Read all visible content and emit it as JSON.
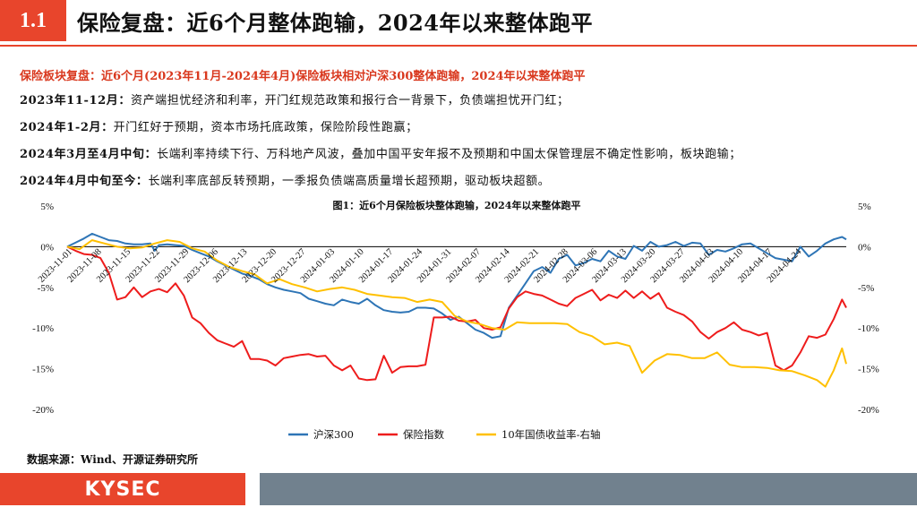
{
  "header": {
    "section": "1.1",
    "title": "保险复盘：近6个月整体跑输，2024年以来整体跑平"
  },
  "headline": "保险板块复盘：近6个月(2023年11月-2024年4月)保险板块相对沪深300整体跑输，2024年以来整体跑平",
  "paragraphs": [
    {
      "label": "2023年11-12月：",
      "text": "资产端担忧经济和利率，开门红规范政策和报行合一背景下，负债端担忧开门红；"
    },
    {
      "label": "2024年1-2月：",
      "text": "开门红好于预期，资本市场托底政策，保险阶段性跑赢；"
    },
    {
      "label": "2024年3月至4月中旬：",
      "text": "长端利率持续下行、万科地产风波，叠加中国平安年报不及预期和中国太保管理层不确定性影响，板块跑输；"
    },
    {
      "label": "2024年4月中旬至今：",
      "text": "长端利率底部反转预期，一季报负债端高质量增长超预期，驱动板块超额。"
    }
  ],
  "source": "数据来源：Wind、开源证券研究所",
  "footer": {
    "logo": "KYSEC"
  },
  "chart_data": {
    "type": "line",
    "title": "图1：近6个月保险板块整体跑输，2024年以来整体跑平",
    "left_axis": {
      "min": -20,
      "max": 5,
      "ticks": [
        "5%",
        "0%",
        "-5%",
        "-10%",
        "-15%",
        "-20%"
      ]
    },
    "right_axis": {
      "min": -20,
      "max": 5,
      "ticks": [
        "5%",
        "0%",
        "-5%",
        "-10%",
        "-15%",
        "-20%"
      ]
    },
    "x_tick_labels": [
      "2023-11-01",
      "2023-11-08",
      "2023-11-15",
      "2023-11-22",
      "2023-11-29",
      "2023-12-06",
      "2023-12-13",
      "2023-12-20",
      "2023-12-27",
      "2024-01-03",
      "2024-01-10",
      "2024-01-17",
      "2024-01-24",
      "2024-01-31",
      "2024-02-07",
      "2024-02-14",
      "2024-02-21",
      "2024-02-28",
      "2024-03-06",
      "2024-03-13",
      "2024-03-20",
      "2024-03-27",
      "2024-04-03",
      "2024-04-10",
      "2024-04-17",
      "2024-04-24"
    ],
    "x_range_days": [
      0,
      187
    ],
    "series": [
      {
        "name": "沪深300",
        "color": "#2e75b6",
        "points": [
          [
            0,
            0
          ],
          [
            2,
            0.5
          ],
          [
            4,
            1
          ],
          [
            6,
            1.6
          ],
          [
            8,
            1.2
          ],
          [
            10,
            0.8
          ],
          [
            12,
            0.7
          ],
          [
            14,
            0.4
          ],
          [
            16,
            0.3
          ],
          [
            18,
            0.3
          ],
          [
            20,
            0.4
          ],
          [
            21,
            -0.5
          ],
          [
            22,
            0.2
          ],
          [
            24,
            0.3
          ],
          [
            26,
            0.2
          ],
          [
            28,
            0.1
          ],
          [
            30,
            -0.4
          ],
          [
            32,
            -0.8
          ],
          [
            34,
            -1.2
          ],
          [
            36,
            -1.8
          ],
          [
            38,
            -2.3
          ],
          [
            40,
            -2.8
          ],
          [
            42,
            -3.3
          ],
          [
            44,
            -3.6
          ],
          [
            46,
            -4.0
          ],
          [
            48,
            -4.6
          ],
          [
            50,
            -5.0
          ],
          [
            52,
            -5.3
          ],
          [
            54,
            -5.5
          ],
          [
            56,
            -5.7
          ],
          [
            58,
            -6.4
          ],
          [
            60,
            -6.7
          ],
          [
            62,
            -7.0
          ],
          [
            64,
            -7.2
          ],
          [
            66,
            -6.5
          ],
          [
            68,
            -6.8
          ],
          [
            70,
            -7.0
          ],
          [
            72,
            -6.4
          ],
          [
            74,
            -7.2
          ],
          [
            76,
            -7.8
          ],
          [
            78,
            -8.0
          ],
          [
            80,
            -8.1
          ],
          [
            82,
            -8.0
          ],
          [
            84,
            -7.5
          ],
          [
            86,
            -7.5
          ],
          [
            88,
            -7.6
          ],
          [
            90,
            -8.2
          ],
          [
            92,
            -9.0
          ],
          [
            94,
            -8.6
          ],
          [
            96,
            -9.4
          ],
          [
            98,
            -10.2
          ],
          [
            100,
            -10.6
          ],
          [
            102,
            -11.2
          ],
          [
            104,
            -11.0
          ],
          [
            106,
            -7.5
          ],
          [
            108,
            -6.0
          ],
          [
            110,
            -4.5
          ],
          [
            112,
            -3.0
          ],
          [
            114,
            -2.5
          ],
          [
            116,
            -3.2
          ],
          [
            118,
            -1.5
          ],
          [
            120,
            -1.0
          ],
          [
            122,
            -2.3
          ],
          [
            124,
            -2.0
          ],
          [
            126,
            -1.5
          ],
          [
            128,
            -1.8
          ],
          [
            130,
            -0.5
          ],
          [
            132,
            -1.2
          ],
          [
            134,
            -1.5
          ],
          [
            136,
            0.1
          ],
          [
            138,
            -0.5
          ],
          [
            140,
            0.6
          ],
          [
            142,
            0.0
          ],
          [
            144,
            0.2
          ],
          [
            146,
            0.6
          ],
          [
            148,
            0.1
          ],
          [
            150,
            0.5
          ],
          [
            152,
            0.4
          ],
          [
            154,
            -1.0
          ],
          [
            156,
            -0.4
          ],
          [
            158,
            -0.6
          ],
          [
            160,
            -0.2
          ],
          [
            162,
            0.3
          ],
          [
            164,
            0.4
          ],
          [
            166,
            -0.2
          ],
          [
            168,
            -0.8
          ],
          [
            170,
            -1.4
          ],
          [
            172,
            -1.6
          ],
          [
            174,
            -1.8
          ],
          [
            176,
            0.0
          ],
          [
            178,
            -1.2
          ],
          [
            180,
            -0.5
          ],
          [
            182,
            0.4
          ],
          [
            184,
            0.9
          ],
          [
            186,
            1.2
          ],
          [
            187,
            0.9
          ]
        ]
      },
      {
        "name": "保险指数",
        "color": "#ee1c1c",
        "points": [
          [
            0,
            0
          ],
          [
            2,
            -0.5
          ],
          [
            4,
            -0.9
          ],
          [
            6,
            -1.0
          ],
          [
            8,
            -1.4
          ],
          [
            10,
            -3.2
          ],
          [
            12,
            -6.5
          ],
          [
            14,
            -6.2
          ],
          [
            16,
            -5.0
          ],
          [
            18,
            -6.2
          ],
          [
            20,
            -5.5
          ],
          [
            22,
            -5.2
          ],
          [
            24,
            -5.6
          ],
          [
            26,
            -4.5
          ],
          [
            28,
            -6.0
          ],
          [
            30,
            -8.7
          ],
          [
            32,
            -9.4
          ],
          [
            34,
            -10.6
          ],
          [
            36,
            -11.5
          ],
          [
            38,
            -11.9
          ],
          [
            40,
            -12.3
          ],
          [
            42,
            -11.6
          ],
          [
            44,
            -13.8
          ],
          [
            46,
            -13.8
          ],
          [
            48,
            -14.0
          ],
          [
            50,
            -14.6
          ],
          [
            52,
            -13.7
          ],
          [
            54,
            -13.5
          ],
          [
            56,
            -13.3
          ],
          [
            58,
            -13.2
          ],
          [
            60,
            -13.5
          ],
          [
            62,
            -13.4
          ],
          [
            64,
            -14.6
          ],
          [
            66,
            -15.2
          ],
          [
            68,
            -14.6
          ],
          [
            70,
            -16.2
          ],
          [
            72,
            -16.4
          ],
          [
            74,
            -16.3
          ],
          [
            76,
            -13.4
          ],
          [
            78,
            -15.5
          ],
          [
            80,
            -14.8
          ],
          [
            82,
            -14.7
          ],
          [
            84,
            -14.7
          ],
          [
            86,
            -14.5
          ],
          [
            88,
            -8.7
          ],
          [
            90,
            -8.7
          ],
          [
            92,
            -8.6
          ],
          [
            94,
            -9.1
          ],
          [
            96,
            -9.2
          ],
          [
            98,
            -9.0
          ],
          [
            100,
            -10.0
          ],
          [
            102,
            -10.2
          ],
          [
            104,
            -9.9
          ],
          [
            106,
            -7.6
          ],
          [
            108,
            -6.2
          ],
          [
            110,
            -5.5
          ],
          [
            112,
            -5.8
          ],
          [
            114,
            -6.0
          ],
          [
            116,
            -6.5
          ],
          [
            118,
            -7.0
          ],
          [
            120,
            -7.3
          ],
          [
            122,
            -6.3
          ],
          [
            124,
            -5.8
          ],
          [
            126,
            -5.3
          ],
          [
            128,
            -6.6
          ],
          [
            130,
            -5.9
          ],
          [
            132,
            -6.3
          ],
          [
            134,
            -5.4
          ],
          [
            136,
            -6.3
          ],
          [
            138,
            -5.5
          ],
          [
            140,
            -6.4
          ],
          [
            142,
            -5.7
          ],
          [
            144,
            -7.5
          ],
          [
            146,
            -8.0
          ],
          [
            148,
            -8.4
          ],
          [
            150,
            -9.2
          ],
          [
            152,
            -10.5
          ],
          [
            154,
            -11.3
          ],
          [
            156,
            -10.5
          ],
          [
            158,
            -10.0
          ],
          [
            160,
            -9.3
          ],
          [
            162,
            -10.2
          ],
          [
            164,
            -10.5
          ],
          [
            166,
            -10.9
          ],
          [
            168,
            -10.6
          ],
          [
            170,
            -14.6
          ],
          [
            172,
            -15.2
          ],
          [
            174,
            -14.6
          ],
          [
            176,
            -13.0
          ],
          [
            178,
            -11.0
          ],
          [
            180,
            -11.2
          ],
          [
            182,
            -10.8
          ],
          [
            184,
            -8.9
          ],
          [
            186,
            -6.5
          ],
          [
            187,
            -7.5
          ]
        ]
      },
      {
        "name": "10年国债收益率-右轴",
        "color": "#ffc000",
        "axis": "right",
        "points": [
          [
            0,
            0
          ],
          [
            3,
            -0.3
          ],
          [
            6,
            0.8
          ],
          [
            9,
            0.4
          ],
          [
            12,
            0.0
          ],
          [
            15,
            -0.2
          ],
          [
            18,
            -0.1
          ],
          [
            21,
            0.4
          ],
          [
            24,
            0.8
          ],
          [
            27,
            0.6
          ],
          [
            30,
            -0.2
          ],
          [
            33,
            -0.6
          ],
          [
            36,
            -1.7
          ],
          [
            39,
            -2.5
          ],
          [
            42,
            -3.0
          ],
          [
            45,
            -3.4
          ],
          [
            48,
            -4.5
          ],
          [
            51,
            -4.0
          ],
          [
            54,
            -4.6
          ],
          [
            57,
            -5.0
          ],
          [
            60,
            -5.5
          ],
          [
            63,
            -5.2
          ],
          [
            66,
            -5.0
          ],
          [
            69,
            -5.3
          ],
          [
            72,
            -5.8
          ],
          [
            75,
            -6.0
          ],
          [
            78,
            -6.2
          ],
          [
            81,
            -6.3
          ],
          [
            84,
            -6.8
          ],
          [
            87,
            -6.5
          ],
          [
            90,
            -6.8
          ],
          [
            93,
            -8.5
          ],
          [
            96,
            -9.2
          ],
          [
            99,
            -9.5
          ],
          [
            102,
            -10.0
          ],
          [
            105,
            -10.2
          ],
          [
            108,
            -9.3
          ],
          [
            111,
            -9.4
          ],
          [
            114,
            -9.4
          ],
          [
            117,
            -9.4
          ],
          [
            120,
            -9.5
          ],
          [
            123,
            -10.5
          ],
          [
            126,
            -11.0
          ],
          [
            129,
            -12.0
          ],
          [
            132,
            -11.8
          ],
          [
            135,
            -12.2
          ],
          [
            138,
            -15.5
          ],
          [
            141,
            -14.0
          ],
          [
            144,
            -13.2
          ],
          [
            147,
            -13.3
          ],
          [
            150,
            -13.7
          ],
          [
            153,
            -13.7
          ],
          [
            156,
            -13.0
          ],
          [
            159,
            -14.5
          ],
          [
            162,
            -14.8
          ],
          [
            165,
            -14.8
          ],
          [
            168,
            -14.9
          ],
          [
            171,
            -15.2
          ],
          [
            174,
            -15.3
          ],
          [
            177,
            -15.8
          ],
          [
            180,
            -16.4
          ],
          [
            182,
            -17.2
          ],
          [
            184,
            -15.2
          ],
          [
            186,
            -12.5
          ],
          [
            187,
            -14.4
          ]
        ]
      }
    ]
  }
}
